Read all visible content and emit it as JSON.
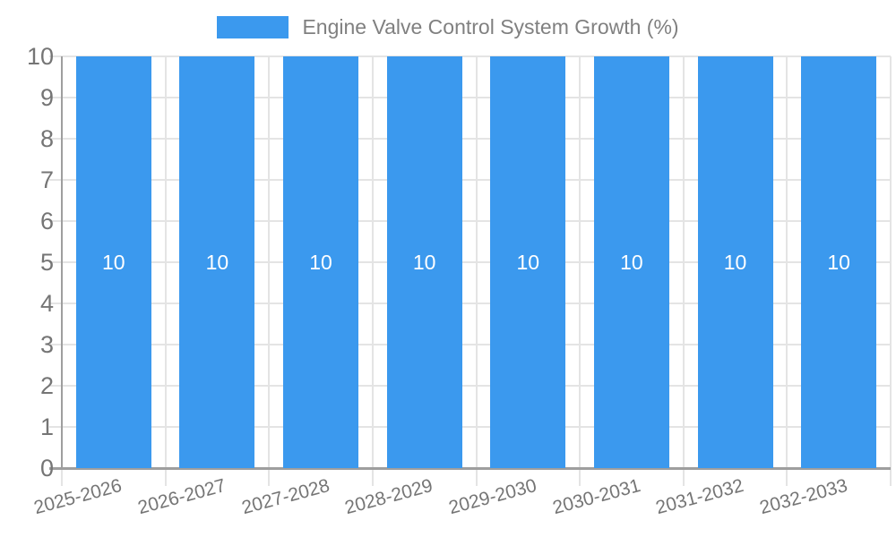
{
  "chart_data": {
    "type": "bar",
    "title": "Engine Valve Control System Growth (%)",
    "categories": [
      "2025-2026",
      "2026-2027",
      "2027-2028",
      "2028-2029",
      "2029-2030",
      "2030-2031",
      "2031-2032",
      "2032-2033"
    ],
    "values": [
      10,
      10,
      10,
      10,
      10,
      10,
      10,
      10
    ],
    "xlabel": "",
    "ylabel": "",
    "ylim": [
      0,
      10
    ],
    "yticks": [
      0,
      1,
      2,
      3,
      4,
      5,
      6,
      7,
      8,
      9,
      10
    ],
    "grid": true,
    "legend_position": "top",
    "colors": {
      "bar": "#3b99ee",
      "grid": "#e4e4e4",
      "axis": "#9e9e9e",
      "tick_label": "#757575",
      "value_label": "#ffffff",
      "legend_text": "#808080"
    }
  }
}
